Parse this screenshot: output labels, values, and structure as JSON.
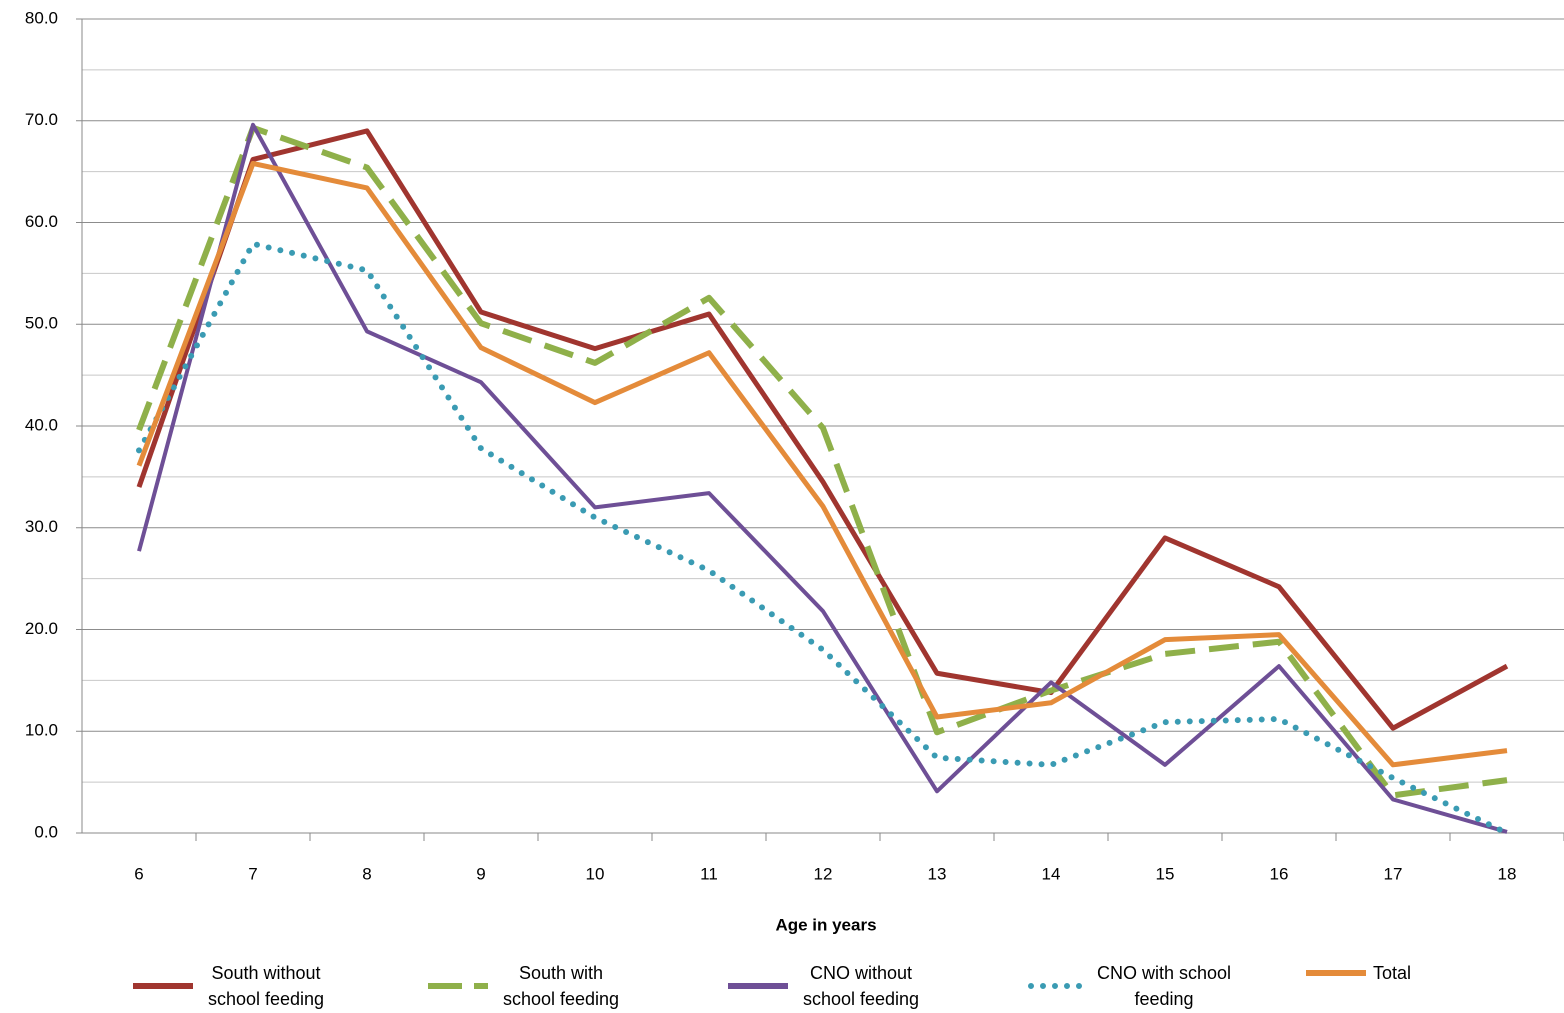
{
  "chart_data": {
    "type": "line",
    "x_label": "Age in years",
    "categories": [
      "6",
      "7",
      "8",
      "9",
      "10",
      "11",
      "12",
      "13",
      "14",
      "15",
      "16",
      "17",
      "18"
    ],
    "ylim": [
      0,
      80
    ],
    "yticks": [
      {
        "value": 0,
        "label": "0.0"
      },
      {
        "value": 10,
        "label": "10.0"
      },
      {
        "value": 20,
        "label": "20.0"
      },
      {
        "value": 30,
        "label": "30.0"
      },
      {
        "value": 40,
        "label": "40.0"
      },
      {
        "value": 50,
        "label": "50.0"
      },
      {
        "value": 60,
        "label": "60.0"
      },
      {
        "value": 70,
        "label": "70.0"
      },
      {
        "value": 80,
        "label": "80.0"
      }
    ],
    "grid": true,
    "minor_grid": true,
    "legend": "bottom",
    "series": [
      {
        "name": "South without school feeding",
        "color": "#a0352f",
        "dash": "solid",
        "values": [
          34.0,
          66.2,
          69.0,
          51.2,
          47.6,
          51.0,
          34.5,
          15.7,
          13.8,
          29.0,
          24.2,
          10.3,
          16.4
        ]
      },
      {
        "name": "South with school feeding",
        "color": "#8fb04a",
        "dash": "dashed",
        "values": [
          39.6,
          69.3,
          65.4,
          50.1,
          46.2,
          52.6,
          39.8,
          9.9,
          14.0,
          17.6,
          18.8,
          3.7,
          5.2
        ]
      },
      {
        "name": "CNO without school feeding",
        "color": "#6e4f96",
        "dash": "solid",
        "values": [
          27.7,
          69.6,
          49.3,
          44.3,
          32.0,
          33.4,
          21.8,
          4.1,
          14.8,
          6.7,
          16.4,
          3.3,
          0.1
        ]
      },
      {
        "name": "CNO with school feeding",
        "color": "#3a9bb3",
        "dash": "dotted",
        "values": [
          37.6,
          57.9,
          55.3,
          37.8,
          31.0,
          25.8,
          18.0,
          7.4,
          6.7,
          10.9,
          11.2,
          5.4,
          0.0
        ]
      },
      {
        "name": "Total",
        "color": "#e48b3a",
        "dash": "solid",
        "values": [
          36.1,
          65.8,
          63.4,
          47.7,
          42.3,
          47.2,
          32.1,
          11.4,
          12.8,
          19.0,
          19.5,
          6.7,
          8.1
        ]
      }
    ]
  }
}
